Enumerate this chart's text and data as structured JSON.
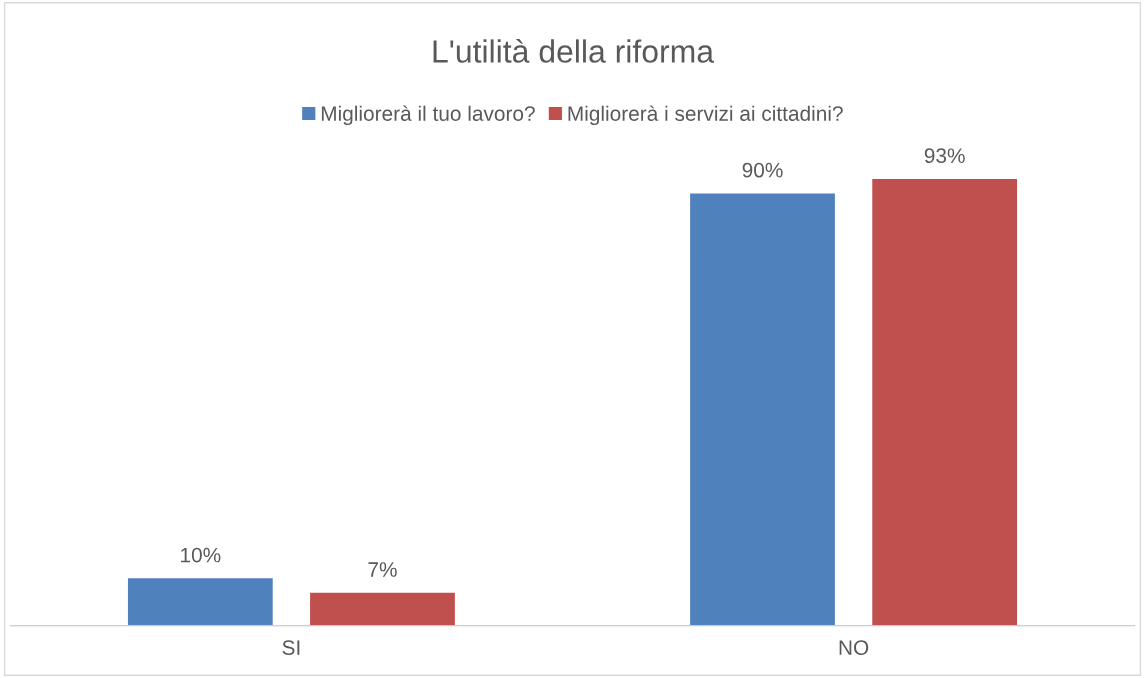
{
  "chart_data": {
    "type": "bar",
    "title": "L'utilità della riforma",
    "categories": [
      "SI",
      "NO"
    ],
    "series": [
      {
        "name": "Migliorerà il tuo lavoro?",
        "color": "#4f81bd",
        "values": [
          10,
          90
        ],
        "value_labels": [
          "10%",
          "90%"
        ]
      },
      {
        "name": "Migliorerà i servizi ai cittadini?",
        "color": "#c0504d",
        "values": [
          7,
          93
        ],
        "value_labels": [
          "7%",
          "93%"
        ]
      }
    ],
    "tick_labels": "x",
    "legend": "top",
    "grid": false
  }
}
